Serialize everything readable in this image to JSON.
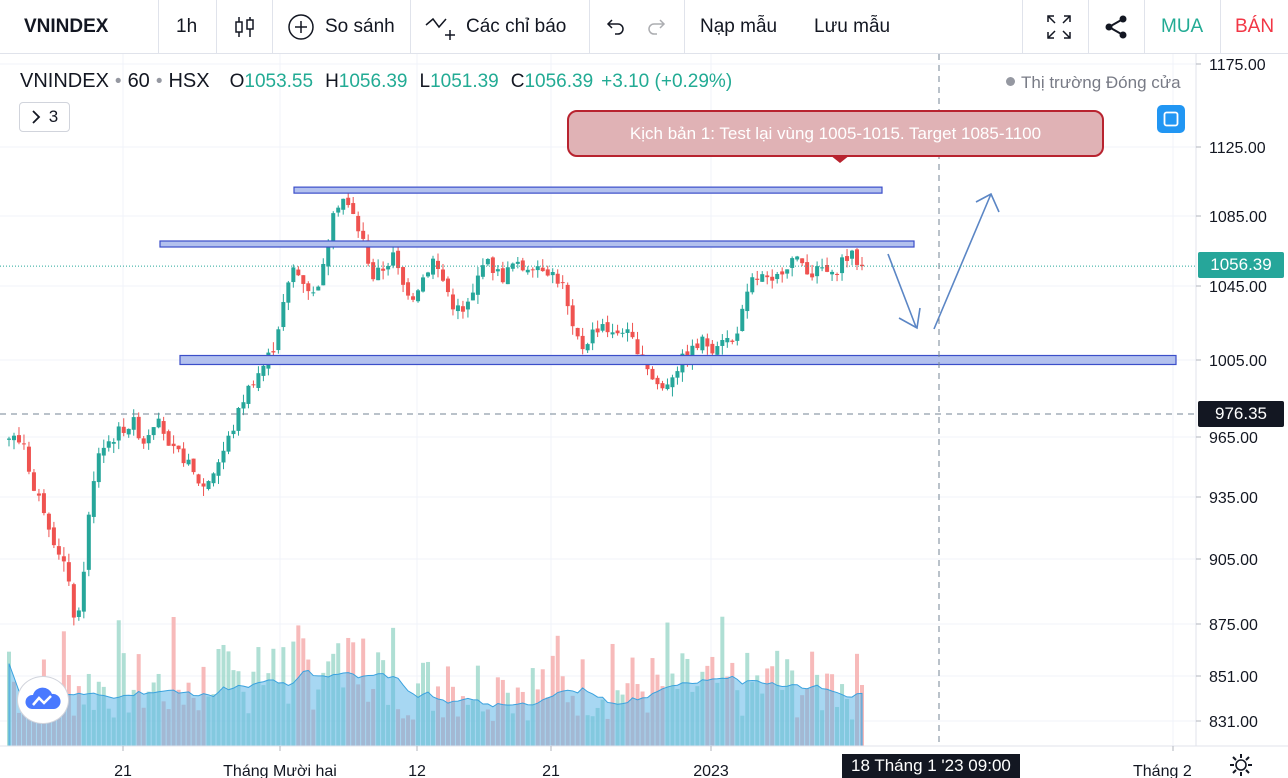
{
  "toolbar": {
    "symbol": "VNINDEX",
    "interval": "1h",
    "compare_label": "So sánh",
    "indicators_label": "Các chỉ báo",
    "load_template_label": "Nạp mẫu",
    "save_template_label": "Lưu mẫu",
    "buy_label": "MUA",
    "sell_label": "BÁN"
  },
  "legend": {
    "symbol": "VNINDEX",
    "interval": "60",
    "exchange": "HSX",
    "open_key": "O",
    "open": "1053.55",
    "high_key": "H",
    "high": "1056.39",
    "low_key": "L",
    "low": "1051.39",
    "close_key": "C",
    "close": "1056.39",
    "change": "+3.10 (+0.29%)",
    "collapsed_count": "3"
  },
  "market_status": "Thị trường Đóng cửa",
  "annotation": {
    "text": "Kịch bản 1: Test lại vùng 1005-1015. Target 1085-1100"
  },
  "colors": {
    "up": "#26a69a",
    "down": "#ef5350",
    "zone_fill": "#b3c1ee",
    "zone_stroke": "#3b4ec9",
    "arrow": "#5b86c5",
    "volume_ma_fill": "#5fb7e8",
    "last_price_badge": "#26a69a",
    "crosshair_badge": "#131722"
  },
  "chart_data": {
    "type": "candlestick",
    "y_axis_ticks": [
      "1175.00",
      "1125.00",
      "1085.00",
      "1045.00",
      "1005.00",
      "965.00",
      "935.00",
      "905.00",
      "875.00",
      "851.00",
      "831.00"
    ],
    "y_axis_values": [
      1175,
      1125,
      1085,
      1045,
      1005,
      965,
      935,
      905,
      875,
      851,
      831
    ],
    "x_axis_ticks": [
      "21",
      "Tháng Mười hai",
      "12",
      "21",
      "2023",
      "Tháng 2"
    ],
    "last_price": "1056.39",
    "crosshair_price": "976.35",
    "crosshair_time": "18 Tháng 1 '23   09:00",
    "horizontal_zones": [
      {
        "name": "resistance-top",
        "price": 1100
      },
      {
        "name": "resistance-mid",
        "price": 1069
      },
      {
        "name": "support-zone",
        "price": 1005
      }
    ],
    "scenario": {
      "retest_zone": [
        1005,
        1015
      ],
      "target": [
        1085,
        1100
      ]
    },
    "close_path": [
      [
        0,
        965
      ],
      [
        3,
        962
      ],
      [
        5,
        938
      ],
      [
        7,
        930
      ],
      [
        9,
        915
      ],
      [
        11,
        903
      ],
      [
        13,
        880
      ],
      [
        14,
        878
      ],
      [
        16,
        925
      ],
      [
        18,
        958
      ],
      [
        21,
        965
      ],
      [
        23,
        970
      ],
      [
        25,
        972
      ],
      [
        27,
        963
      ],
      [
        30,
        978
      ],
      [
        32,
        958
      ],
      [
        35,
        955
      ],
      [
        37,
        946
      ],
      [
        39,
        940
      ],
      [
        41,
        948
      ],
      [
        43,
        958
      ],
      [
        45,
        970
      ],
      [
        47,
        985
      ],
      [
        49,
        995
      ],
      [
        51,
        1002
      ],
      [
        53,
        1012
      ],
      [
        55,
        1035
      ],
      [
        57,
        1055
      ],
      [
        59,
        1048
      ],
      [
        61,
        1040
      ],
      [
        63,
        1055
      ],
      [
        65,
        1090
      ],
      [
        67,
        1095
      ],
      [
        69,
        1085
      ],
      [
        71,
        1070
      ],
      [
        73,
        1050
      ],
      [
        75,
        1055
      ],
      [
        77,
        1062
      ],
      [
        79,
        1045
      ],
      [
        81,
        1040
      ],
      [
        83,
        1050
      ],
      [
        85,
        1060
      ],
      [
        87,
        1048
      ],
      [
        89,
        1035
      ],
      [
        91,
        1030
      ],
      [
        93,
        1040
      ],
      [
        95,
        1060
      ],
      [
        97,
        1055
      ],
      [
        99,
        1050
      ],
      [
        101,
        1057
      ],
      [
        103,
        1055
      ],
      [
        105,
        1058
      ],
      [
        107,
        1056
      ],
      [
        109,
        1052
      ],
      [
        111,
        1045
      ],
      [
        113,
        1020
      ],
      [
        115,
        1012
      ],
      [
        117,
        1020
      ],
      [
        119,
        1025
      ],
      [
        121,
        1018
      ],
      [
        123,
        1022
      ],
      [
        125,
        1015
      ],
      [
        127,
        1008
      ],
      [
        129,
        995
      ],
      [
        131,
        990
      ],
      [
        133,
        998
      ],
      [
        135,
        1005
      ],
      [
        137,
        1010
      ],
      [
        139,
        1015
      ],
      [
        141,
        1012
      ],
      [
        143,
        1018
      ],
      [
        145,
        1014
      ],
      [
        147,
        1030
      ],
      [
        149,
        1048
      ],
      [
        151,
        1050
      ],
      [
        153,
        1045
      ],
      [
        155,
        1055
      ],
      [
        157,
        1060
      ],
      [
        159,
        1058
      ],
      [
        161,
        1052
      ],
      [
        163,
        1055
      ],
      [
        165,
        1050
      ],
      [
        167,
        1060
      ],
      [
        169,
        1062
      ],
      [
        171,
        1056
      ],
      [
        172,
        1056.39
      ]
    ],
    "volume_bars": 172
  }
}
